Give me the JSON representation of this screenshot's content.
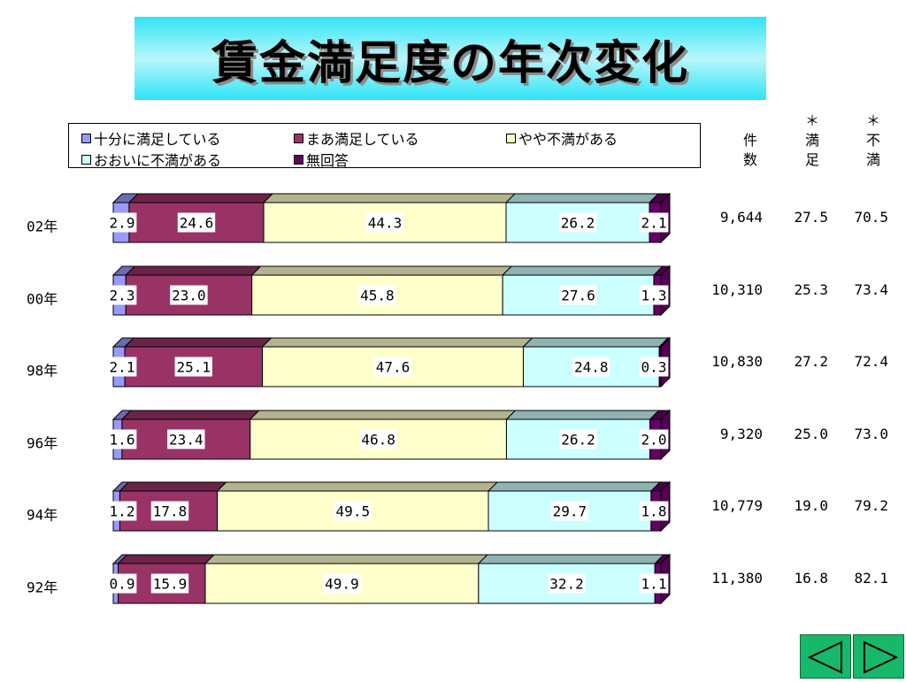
{
  "title": "賃金満足度の年次変化",
  "colors": {
    "very_satisfied": "#9999ff",
    "fairly_satisfied": "#993366",
    "somewhat_dissatisfied": "#ffffcc",
    "very_dissatisfied": "#ccffff",
    "no_answer": "#660066"
  },
  "legend": [
    {
      "label": "十分に満足している",
      "color": "#9999ff"
    },
    {
      "label": "まあ満足している",
      "color": "#993366"
    },
    {
      "label": "やや不満がある",
      "color": "#ffffcc"
    },
    {
      "label": "おおいに不満がある",
      "color": "#ccffff"
    },
    {
      "label": "無回答",
      "color": "#660066"
    }
  ],
  "columns": {
    "count": "件\n数",
    "satisfied": "＊\n満\n足",
    "dissatisfied": "＊\n不\n満"
  },
  "chart_data": {
    "type": "bar",
    "stacked": true,
    "orientation": "horizontal",
    "title": "賃金満足度の年次変化",
    "categories": [
      "02年",
      "00年",
      "98年",
      "96年",
      "94年",
      "92年"
    ],
    "series": [
      {
        "name": "十分に満足している",
        "values": [
          2.9,
          2.3,
          2.1,
          1.6,
          1.2,
          0.9
        ]
      },
      {
        "name": "まあ満足している",
        "values": [
          24.6,
          23.0,
          25.1,
          23.4,
          17.8,
          15.9
        ]
      },
      {
        "name": "やや不満がある",
        "values": [
          44.3,
          45.8,
          47.6,
          46.8,
          49.5,
          49.9
        ]
      },
      {
        "name": "おおいに不満がある",
        "values": [
          26.2,
          27.6,
          24.8,
          26.2,
          29.7,
          32.2
        ]
      },
      {
        "name": "無回答",
        "values": [
          2.1,
          1.3,
          0.3,
          2.0,
          1.8,
          1.1
        ]
      }
    ],
    "value_labels": [
      [
        "2.9",
        "24.6",
        "44.3",
        "26.2",
        "2.1"
      ],
      [
        "2.3",
        "23.0",
        "45.8",
        "27.6",
        "1.3"
      ],
      [
        "2.1",
        "25.1",
        "47.6",
        "24.8",
        "0.3"
      ],
      [
        "1.6",
        "23.4",
        "46.8",
        "26.2",
        "2.0"
      ],
      [
        "1.2",
        "17.8",
        "49.5",
        "29.7",
        "1.8"
      ],
      [
        "0.9",
        "15.9",
        "49.9",
        "32.2",
        "1.1"
      ]
    ],
    "table": [
      {
        "count": "9,644",
        "satisfied": "27.5",
        "dissatisfied": "70.5"
      },
      {
        "count": "10,310",
        "satisfied": "25.3",
        "dissatisfied": "73.4"
      },
      {
        "count": "10,830",
        "satisfied": "27.2",
        "dissatisfied": "72.4"
      },
      {
        "count": "9,320",
        "satisfied": "25.0",
        "dissatisfied": "73.0"
      },
      {
        "count": "10,779",
        "satisfied": "19.0",
        "dissatisfied": "79.2"
      },
      {
        "count": "11,380",
        "satisfied": "16.8",
        "dissatisfied": "82.1"
      }
    ],
    "xlim": [
      0,
      100
    ],
    "legend_position": "top"
  },
  "nav": {
    "prev_icon": "triangle-left-icon",
    "next_icon": "triangle-right-icon"
  }
}
